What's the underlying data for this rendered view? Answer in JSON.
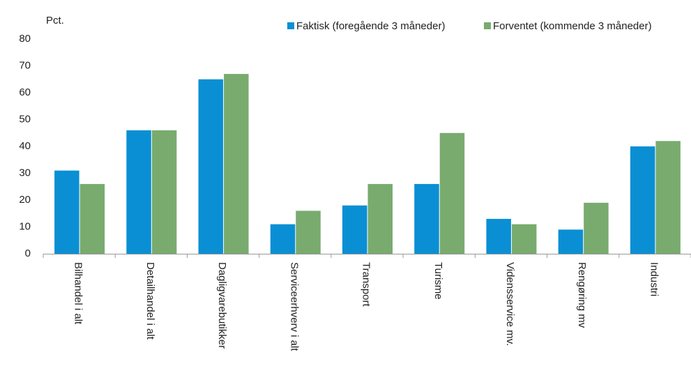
{
  "chart_data": {
    "type": "bar",
    "y_label": "Pct.",
    "categories": [
      "Bilhandel i alt",
      "Detailhandel i alt",
      "Dagligvarebutikker",
      "Serviceerhverv i alt",
      "Transport",
      "Turisme",
      "Vidensservice mv.",
      "Rengøring mv",
      "Industri"
    ],
    "series": [
      {
        "name": "Faktisk (foregående 3 måneder)",
        "color": "#0a8fd4",
        "values": [
          31,
          46,
          65,
          11,
          18,
          26,
          13,
          9,
          40
        ]
      },
      {
        "name": "Forventet (kommende 3 måneder)",
        "color": "#79ab6f",
        "values": [
          26,
          46,
          67,
          16,
          26,
          45,
          11,
          19,
          42
        ]
      }
    ],
    "ylim": [
      0,
      80
    ],
    "yticks": [
      0,
      10,
      20,
      30,
      40,
      50,
      60,
      70,
      80
    ],
    "grid": false,
    "legend": "top-right"
  }
}
